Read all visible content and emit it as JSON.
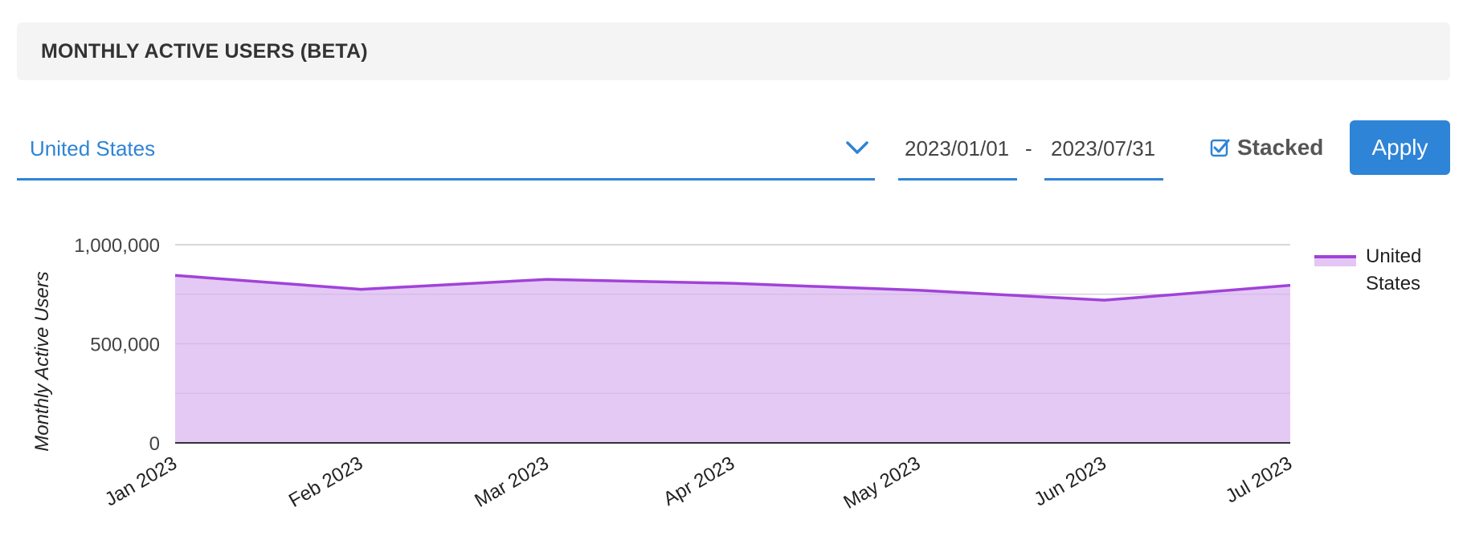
{
  "header": {
    "title": "MONTHLY ACTIVE USERS (BETA)"
  },
  "filters": {
    "country": "United States",
    "date_start": "2023/01/01",
    "date_separator": "-",
    "date_end": "2023/07/31",
    "stacked_label": "Stacked",
    "stacked_checked": true,
    "apply_label": "Apply",
    "chevron_icon": "chevron-down-icon",
    "checkbox_icon": "checkbox-checked-icon"
  },
  "colors": {
    "accent": "#2e84d6",
    "series_line": "#a142d9",
    "series_fill": "#e3c6f4"
  },
  "chart_data": {
    "type": "area",
    "stacked": true,
    "ylabel": "Monthly Active Users",
    "xlabel": "",
    "ylim": [
      0,
      1000000
    ],
    "yticks": [
      0,
      500000,
      1000000
    ],
    "ytick_labels": [
      "0",
      "500,000",
      "1,000,000"
    ],
    "categories": [
      "Jan 2023",
      "Feb 2023",
      "Mar 2023",
      "Apr 2023",
      "May 2023",
      "Jun 2023",
      "Jul 2023"
    ],
    "series": [
      {
        "name": "United States",
        "values": [
          845000,
          775000,
          825000,
          805000,
          770000,
          720000,
          795000
        ]
      }
    ],
    "legend": {
      "position": "right",
      "label_lines": [
        "United",
        "States"
      ]
    },
    "grid": true
  }
}
